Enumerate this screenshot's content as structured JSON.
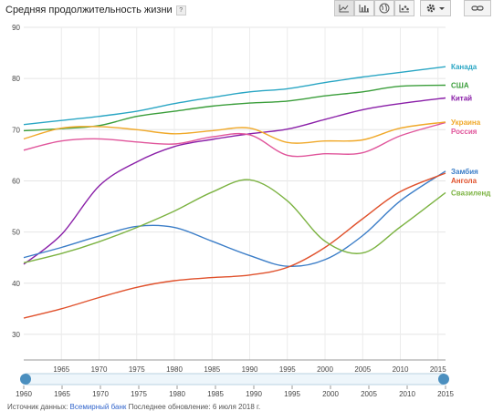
{
  "header": {
    "title": "Средняя продолжительность жизни",
    "help": "?"
  },
  "toolbar": {
    "buttons": [
      {
        "name": "line-chart-button",
        "icon": "line-chart-icon",
        "active": true
      },
      {
        "name": "bar-chart-button",
        "icon": "bar-chart-icon",
        "active": false
      },
      {
        "name": "map-button",
        "icon": "globe-icon",
        "active": false
      },
      {
        "name": "scatter-button",
        "icon": "scatter-icon",
        "active": false
      },
      {
        "name": "settings-button",
        "icon": "gear-icon",
        "active": false
      },
      {
        "name": "link-button",
        "icon": "link-icon",
        "active": false
      }
    ]
  },
  "chart_data": {
    "type": "line",
    "title": "Средняя продолжительность жизни",
    "xlim": [
      1960,
      2016
    ],
    "ylim": [
      0,
      90
    ],
    "yticks": [
      0,
      10,
      20,
      30,
      40,
      50,
      60,
      70,
      80,
      90
    ],
    "xticks": [
      1965,
      1970,
      1975,
      1980,
      1985,
      1990,
      1995,
      2000,
      2005,
      2010,
      2015
    ],
    "grid": true,
    "legend_position": "right-end-labels",
    "x": [
      1960,
      1965,
      1970,
      1975,
      1980,
      1985,
      1990,
      1995,
      2000,
      2005,
      2010,
      2016
    ],
    "series": [
      {
        "name": "Канада",
        "color": "#2aa6c4",
        "values": [
          71.0,
          71.8,
          72.6,
          73.6,
          75.1,
          76.3,
          77.4,
          78.0,
          79.2,
          80.3,
          81.2,
          82.3
        ]
      },
      {
        "name": "США",
        "color": "#3b9e3b",
        "values": [
          69.8,
          70.2,
          70.8,
          72.6,
          73.6,
          74.6,
          75.2,
          75.6,
          76.6,
          77.4,
          78.5,
          78.7
        ]
      },
      {
        "name": "Китай",
        "color": "#8a1fa8",
        "values": [
          43.7,
          49.5,
          59.0,
          63.7,
          66.7,
          68.1,
          69.2,
          70.1,
          72.0,
          73.9,
          75.1,
          76.2
        ]
      },
      {
        "name": "Россия",
        "color": "#e0559b",
        "values": [
          66.0,
          67.8,
          68.2,
          67.6,
          67.2,
          68.6,
          69.0,
          65.0,
          65.3,
          65.5,
          68.8,
          71.4
        ]
      },
      {
        "name": "Украина",
        "color": "#f0a92a",
        "values": [
          68.2,
          70.3,
          70.6,
          70.0,
          69.2,
          69.8,
          70.3,
          67.5,
          67.8,
          68.0,
          70.3,
          71.5
        ]
      },
      {
        "name": "Замбия",
        "color": "#3c7ec8",
        "values": [
          45.0,
          47.0,
          49.2,
          51.1,
          50.9,
          48.2,
          45.4,
          43.3,
          44.6,
          49.3,
          56.1,
          61.9
        ]
      },
      {
        "name": "Ангола",
        "color": "#e0512c",
        "values": [
          33.2,
          35.0,
          37.2,
          39.2,
          40.5,
          41.1,
          41.6,
          43.1,
          47.0,
          52.6,
          57.9,
          61.5
        ]
      },
      {
        "name": "Свазиленд",
        "color": "#7cb342",
        "values": [
          44.0,
          45.8,
          48.1,
          50.9,
          54.1,
          57.8,
          60.2,
          56.1,
          48.2,
          45.9,
          51.0,
          57.7
        ]
      }
    ],
    "timeline": {
      "range": [
        1960,
        2015
      ],
      "ticks": [
        1960,
        1965,
        1970,
        1975,
        1980,
        1985,
        1990,
        1995,
        2000,
        2005,
        2010,
        2015
      ]
    }
  },
  "footer": {
    "source_label": "Источник данных:",
    "source_link": "Всемирный банк",
    "updated": "Последнее обновление: 6 июля 2018 г."
  }
}
